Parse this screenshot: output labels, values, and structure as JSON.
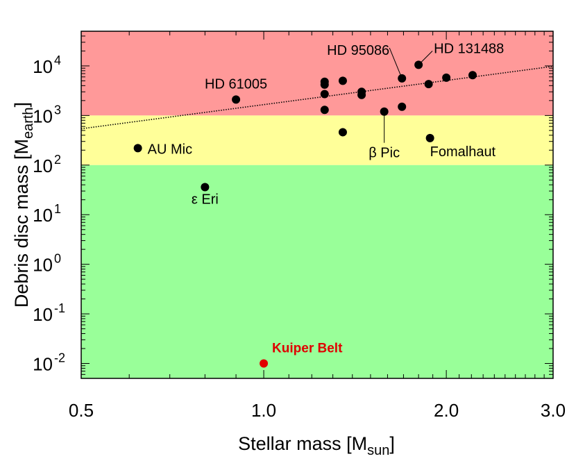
{
  "chart_data": {
    "type": "scatter",
    "xlabel": {
      "main": "Stellar mass [M",
      "sub": "sun",
      "end": "]"
    },
    "ylabel": {
      "main": "Debris disc mass [M",
      "sub": "earth",
      "end": "]"
    },
    "x_scale": "log",
    "y_scale": "log",
    "xlim": [
      0.5,
      3.0
    ],
    "ylim": [
      0.005,
      50000
    ],
    "x_ticks": [
      {
        "value": 0.5,
        "label": "0.5"
      },
      {
        "value": 1.0,
        "label": "1.0"
      },
      {
        "value": 2.0,
        "label": "2.0"
      },
      {
        "value": 3.0,
        "label": "3.0"
      }
    ],
    "y_ticks": [
      {
        "value": 0.01,
        "base": "10",
        "exp": "-2"
      },
      {
        "value": 0.1,
        "base": "10",
        "exp": "-1"
      },
      {
        "value": 1,
        "base": "10",
        "exp": "0"
      },
      {
        "value": 10,
        "base": "10",
        "exp": "1"
      },
      {
        "value": 100,
        "base": "10",
        "exp": "2"
      },
      {
        "value": 1000,
        "base": "10",
        "exp": "3"
      },
      {
        "value": 10000,
        "base": "10",
        "exp": "4"
      }
    ],
    "bands": [
      {
        "from": 1000,
        "to": 50000,
        "color": "#ff9999"
      },
      {
        "from": 100,
        "to": 1000,
        "color": "#ffff99"
      },
      {
        "from": 0.005,
        "to": 100,
        "color": "#99ff99"
      }
    ],
    "fit_line": {
      "x": [
        0.5,
        3.0
      ],
      "y": [
        540,
        9800
      ],
      "color": "#000000",
      "style": "dotted"
    },
    "points": [
      {
        "x": 0.62,
        "y": 220,
        "label": "AU Mic"
      },
      {
        "x": 0.8,
        "y": 36,
        "label": "ε Eri"
      },
      {
        "x": 0.9,
        "y": 2100,
        "label": "HD 61005"
      },
      {
        "x": 1.26,
        "y": 4800
      },
      {
        "x": 1.26,
        "y": 4200
      },
      {
        "x": 1.26,
        "y": 2700
      },
      {
        "x": 1.26,
        "y": 1300
      },
      {
        "x": 1.35,
        "y": 5000
      },
      {
        "x": 1.35,
        "y": 460
      },
      {
        "x": 1.45,
        "y": 3000
      },
      {
        "x": 1.45,
        "y": 2600
      },
      {
        "x": 1.58,
        "y": 1200,
        "label": "β Pic"
      },
      {
        "x": 1.69,
        "y": 5600,
        "label": "HD 95086"
      },
      {
        "x": 1.69,
        "y": 1500
      },
      {
        "x": 1.8,
        "y": 10500,
        "label": "HD 131488"
      },
      {
        "x": 1.87,
        "y": 4300
      },
      {
        "x": 1.88,
        "y": 350,
        "label": "Fomalhaut"
      },
      {
        "x": 2.0,
        "y": 5800
      },
      {
        "x": 2.21,
        "y": 6500
      },
      {
        "x": 1.0,
        "y": 0.01,
        "label": "Kuiper Belt",
        "color": "#ff0000",
        "highlight": true
      }
    ],
    "point_color": "#000000",
    "highlight_color": "#e00000"
  }
}
